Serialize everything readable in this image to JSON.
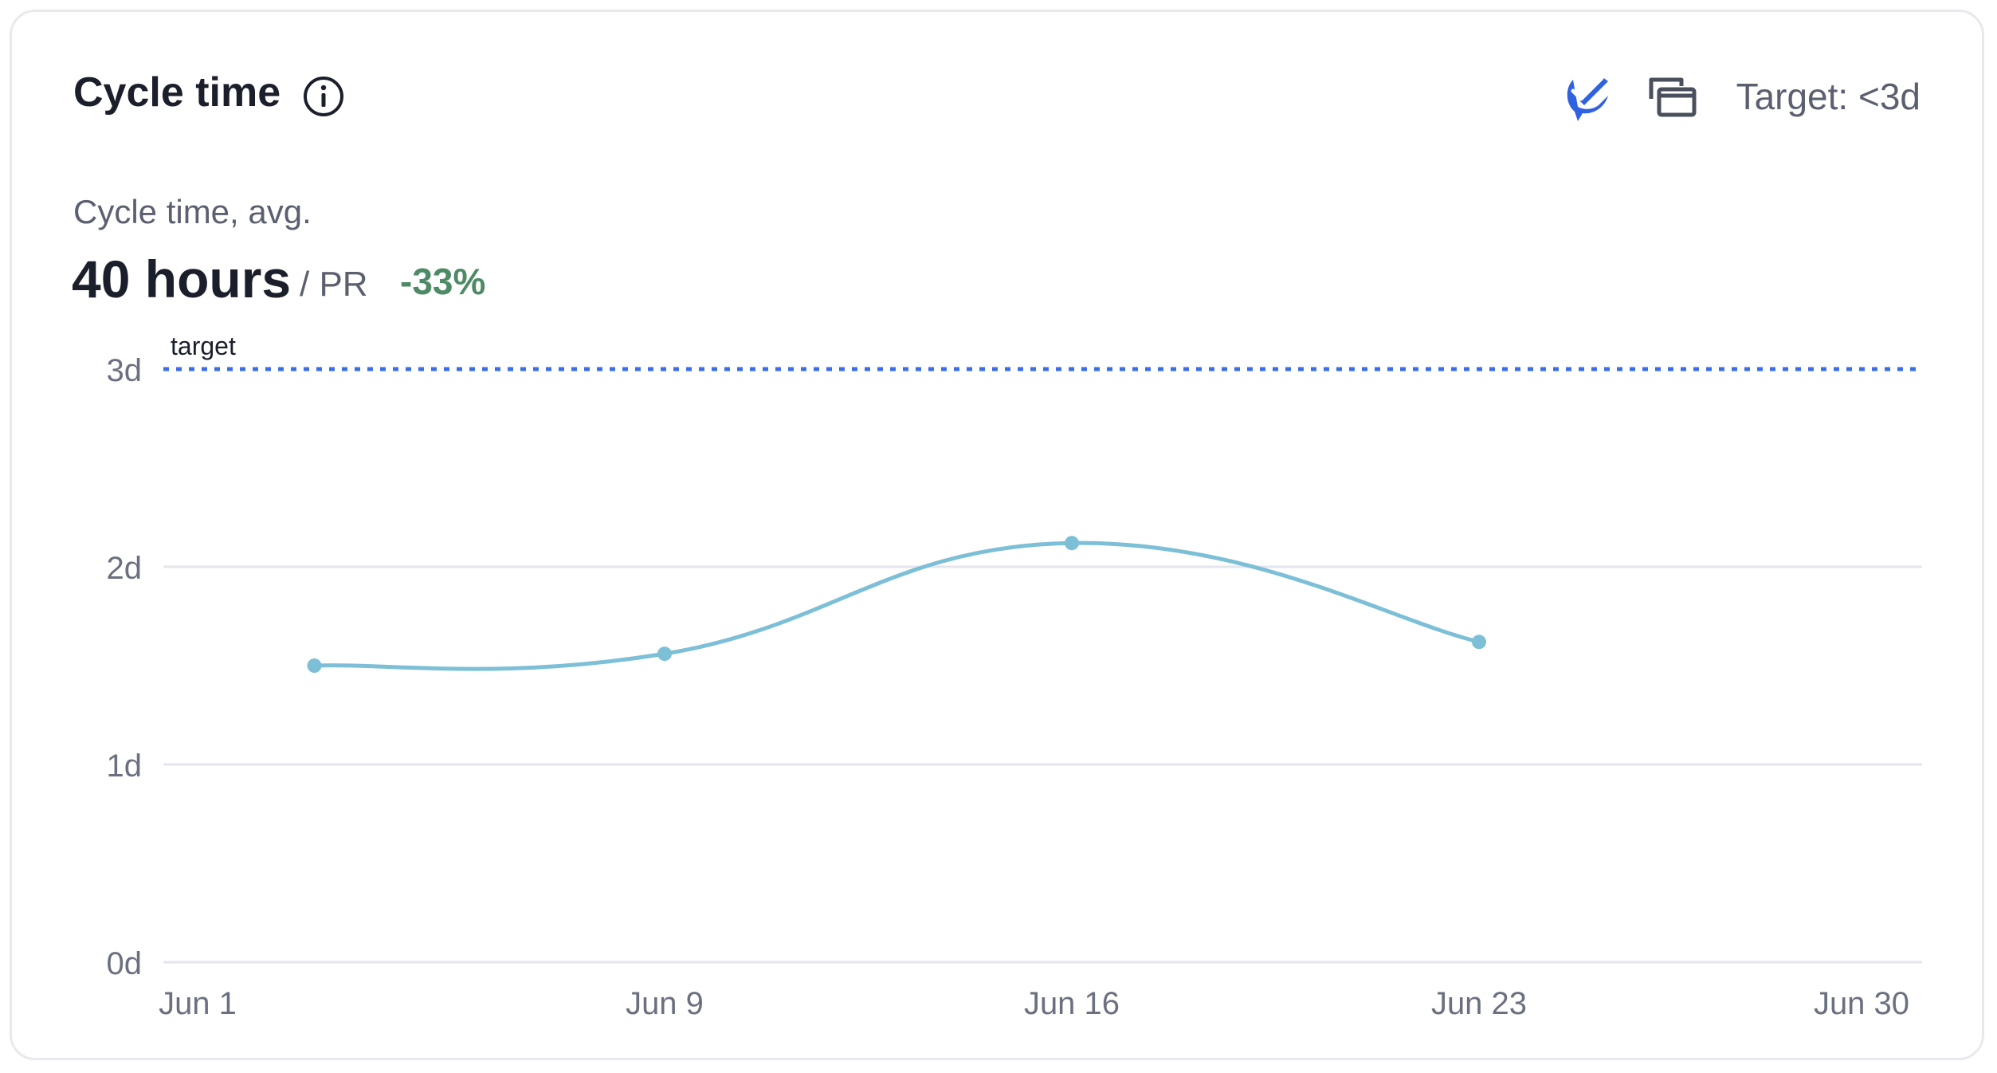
{
  "header": {
    "title": "Cycle time",
    "target_label": "Target: <3d"
  },
  "summary": {
    "label": "Cycle time, avg.",
    "value": "40 hours",
    "unit": "/ PR",
    "delta": "-33%"
  },
  "icons": [
    "info-icon",
    "brand-logo-icon",
    "compare-windows-icon"
  ],
  "colors": {
    "line": "#7cbfd6",
    "target": "#3b6ee8",
    "delta": "#4f8a66",
    "grid": "#e3e6ec",
    "brand": "#2f62e0"
  },
  "chart_data": {
    "type": "line",
    "x_ticks": [
      "Jun 1",
      "Jun 9",
      "Jun 16",
      "Jun 23",
      "Jun 30"
    ],
    "y_ticks": [
      "0d",
      "1d",
      "2d",
      "3d"
    ],
    "ylim": [
      0,
      3
    ],
    "xlim": [
      "Jun 1",
      "Jun 30"
    ],
    "grid": true,
    "series": [
      {
        "points": [
          {
            "x": "Jun 3",
            "y": 1.5
          },
          {
            "x": "Jun 9",
            "y": 1.56
          },
          {
            "x": "Jun 16",
            "y": 2.12
          },
          {
            "x": "Jun 23",
            "y": 1.62
          }
        ]
      }
    ],
    "target": {
      "label": "target",
      "y": 3
    }
  }
}
